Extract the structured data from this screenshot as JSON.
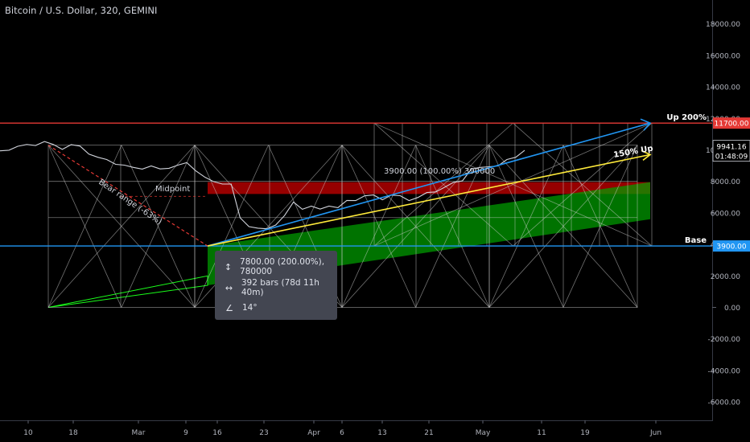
{
  "symbol_title": "Bitcoin / U.S. Dollar, 320, GEMINI",
  "tooltip": {
    "price_range": "7800.00 (200.00%), 780000",
    "bars_range": "392 bars (78d 11h 40m)",
    "angle": "14°",
    "icons": [
      "vertical-range-icon",
      "horizontal-range-icon",
      "angle-icon"
    ]
  },
  "colors": {
    "background": "#000000",
    "red_line": "#e53935",
    "blue_line": "#2196f3",
    "yellow_line": "#ffeb3b",
    "green_fill": "#00a000",
    "red_fill": "#b00000",
    "grid_white": "#cfcfcf",
    "price_line": "#d1d4dc"
  },
  "chart_data": {
    "type": "line",
    "title": "Bitcoin / U.S. Dollar, 320, GEMINI",
    "y_ticks": [
      "18000.00",
      "16000.00",
      "14000.00",
      "12000.00",
      "10000.00",
      "8000.00",
      "6000.00",
      "4000.00",
      "2000.00",
      "0.00",
      "-2000.00",
      "-4000.00",
      "-6000.00"
    ],
    "y_range": [
      -6900,
      19500
    ],
    "x_ticks": [
      "10",
      "18",
      "Mar",
      "9",
      "16",
      "23",
      "Apr",
      "6",
      "13",
      "21",
      "May",
      "11",
      "19",
      "Jun"
    ],
    "horizontal_lines": [
      {
        "name": "Up 200%",
        "value": 11700,
        "price_label": "11700.00",
        "color": "#e53935"
      },
      {
        "name": "Base",
        "value": 3900,
        "price_label": "3900.00",
        "color": "#2196f3"
      }
    ],
    "last_price": {
      "value": 9941.16,
      "label": "9941.16",
      "countdown": "01:48:09"
    },
    "annotations": [
      "Bear range (-63%)",
      "Midpoint",
      "3900.00 (100.00%) 390000",
      "150% Up"
    ],
    "price_series": [
      {
        "x": 0,
        "y": 9850
      },
      {
        "x": 1,
        "y": 10050
      },
      {
        "x": 2,
        "y": 10200
      },
      {
        "x": 3,
        "y": 10250
      },
      {
        "x": 4,
        "y": 10350
      },
      {
        "x": 5,
        "y": 10500
      },
      {
        "x": 6,
        "y": 10250
      },
      {
        "x": 7,
        "y": 10100
      },
      {
        "x": 8,
        "y": 10300
      },
      {
        "x": 9,
        "y": 10150
      },
      {
        "x": 10,
        "y": 9800
      },
      {
        "x": 11,
        "y": 9500
      },
      {
        "x": 12,
        "y": 9300
      },
      {
        "x": 13,
        "y": 9150
      },
      {
        "x": 14,
        "y": 9000
      },
      {
        "x": 15,
        "y": 8800
      },
      {
        "x": 16,
        "y": 8850
      },
      {
        "x": 17,
        "y": 8950
      },
      {
        "x": 18,
        "y": 8700
      },
      {
        "x": 19,
        "y": 8900
      },
      {
        "x": 20,
        "y": 9000
      },
      {
        "x": 21,
        "y": 9100
      },
      {
        "x": 22,
        "y": 8750
      },
      {
        "x": 23,
        "y": 8250
      },
      {
        "x": 24,
        "y": 7900
      },
      {
        "x": 25,
        "y": 7900
      },
      {
        "x": 26,
        "y": 7800
      },
      {
        "x": 27,
        "y": 5600
      },
      {
        "x": 28,
        "y": 5200
      },
      {
        "x": 29,
        "y": 5000
      },
      {
        "x": 30,
        "y": 4900
      },
      {
        "x": 31,
        "y": 5300
      },
      {
        "x": 32,
        "y": 5800
      },
      {
        "x": 33,
        "y": 6600
      },
      {
        "x": 34,
        "y": 6300
      },
      {
        "x": 35,
        "y": 6400
      },
      {
        "x": 36,
        "y": 6150
      },
      {
        "x": 37,
        "y": 6500
      },
      {
        "x": 38,
        "y": 6300
      },
      {
        "x": 39,
        "y": 6700
      },
      {
        "x": 40,
        "y": 6850
      },
      {
        "x": 41,
        "y": 7050
      },
      {
        "x": 42,
        "y": 7050
      },
      {
        "x": 43,
        "y": 6900
      },
      {
        "x": 44,
        "y": 7100
      },
      {
        "x": 45,
        "y": 7000
      },
      {
        "x": 46,
        "y": 6850
      },
      {
        "x": 47,
        "y": 6950
      },
      {
        "x": 48,
        "y": 7200
      },
      {
        "x": 49,
        "y": 7400
      },
      {
        "x": 50,
        "y": 7600
      },
      {
        "x": 51,
        "y": 7850
      },
      {
        "x": 52,
        "y": 8100
      },
      {
        "x": 53,
        "y": 8750
      },
      {
        "x": 54,
        "y": 8800
      },
      {
        "x": 55,
        "y": 9000
      },
      {
        "x": 56,
        "y": 8950
      },
      {
        "x": 57,
        "y": 9300
      },
      {
        "x": 58,
        "y": 9600
      },
      {
        "x": 59,
        "y": 9941
      }
    ]
  }
}
